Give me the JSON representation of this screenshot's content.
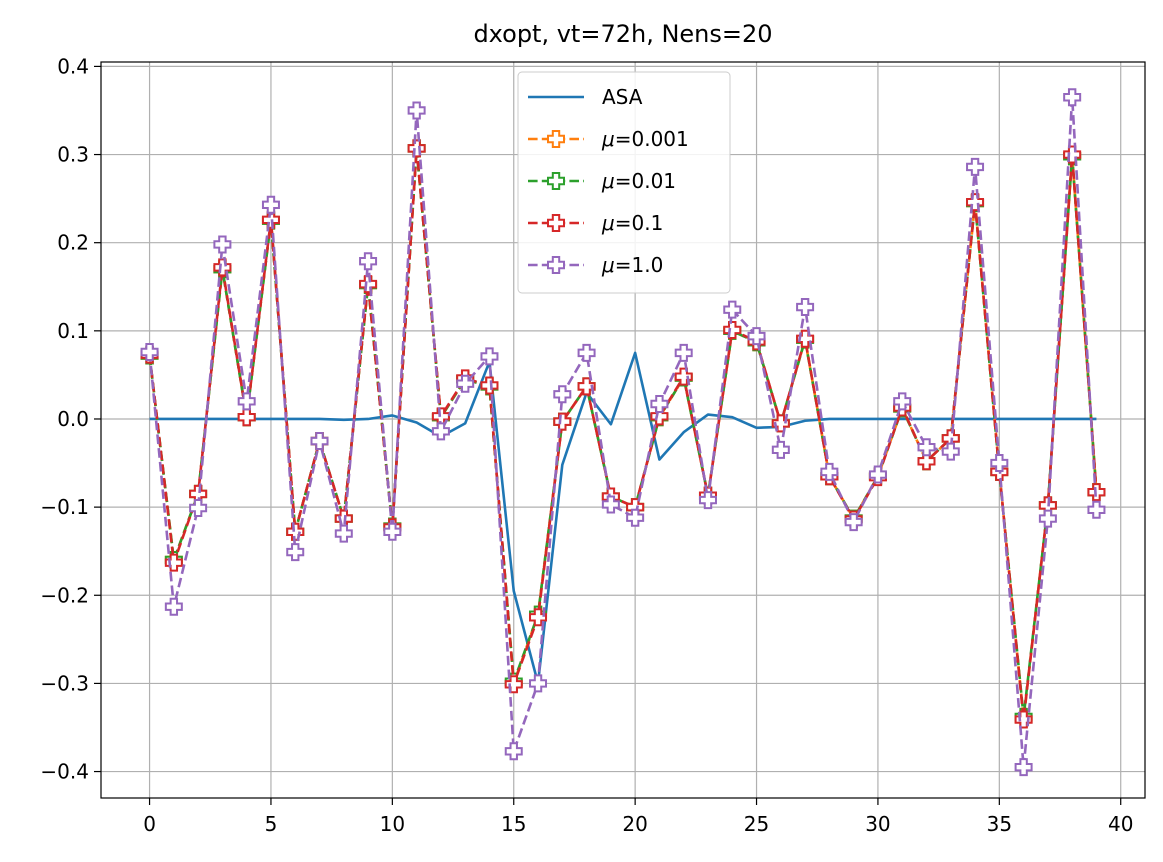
{
  "chart_data": {
    "type": "line",
    "title": "dxopt, vt=72h, Nens=20",
    "xlabel": "",
    "ylabel": "",
    "xlim": [
      -2,
      41
    ],
    "ylim": [
      -0.43,
      0.405
    ],
    "xticks": [
      0,
      5,
      10,
      15,
      20,
      25,
      30,
      35,
      40
    ],
    "yticks": [
      -0.4,
      -0.3,
      -0.2,
      -0.1,
      0.0,
      0.1,
      0.2,
      0.3,
      0.4
    ],
    "xtick_labels": [
      "0",
      "5",
      "10",
      "15",
      "20",
      "25",
      "30",
      "35",
      "40"
    ],
    "ytick_labels": [
      "−0.4",
      "−0.3",
      "−0.2",
      "−0.1",
      "0.0",
      "0.1",
      "0.2",
      "0.3",
      "0.4"
    ],
    "grid": true,
    "legend_position": "upper center",
    "x": [
      0,
      1,
      2,
      3,
      4,
      5,
      6,
      7,
      8,
      9,
      10,
      11,
      12,
      13,
      14,
      15,
      16,
      17,
      18,
      19,
      20,
      21,
      22,
      23,
      24,
      25,
      26,
      27,
      28,
      29,
      30,
      31,
      32,
      33,
      34,
      35,
      36,
      37,
      38,
      39
    ],
    "series": [
      {
        "name": "ASA",
        "label_prefix": "ASA",
        "label_value": "",
        "color": "#1f77b4",
        "style": "solid",
        "marker": "none",
        "values": [
          0,
          0,
          0,
          0,
          0,
          0,
          0,
          0,
          -0.001,
          0,
          0.004,
          -0.004,
          -0.02,
          -0.005,
          0.065,
          -0.195,
          -0.3,
          -0.052,
          0.03,
          -0.006,
          0.075,
          -0.046,
          -0.015,
          0.005,
          0.002,
          -0.01,
          -0.009,
          -0.002,
          0,
          0,
          0,
          0,
          0,
          0,
          0,
          0,
          0,
          0,
          0,
          0
        ]
      },
      {
        "name": "μ=0.001",
        "label_prefix": "μ",
        "label_value": "=0.001",
        "color": "#ff7f0e",
        "style": "dashed",
        "marker": "plus",
        "values": [
          0.072,
          -0.16,
          -0.085,
          0.17,
          0.002,
          0.225,
          -0.128,
          -0.025,
          -0.113,
          0.152,
          -0.122,
          0.307,
          0.002,
          0.045,
          0.037,
          -0.3,
          -0.222,
          -0.003,
          0.037,
          -0.088,
          -0.1,
          0.002,
          0.047,
          -0.087,
          0.1,
          0.087,
          -0.005,
          0.09,
          -0.065,
          -0.113,
          -0.065,
          0.012,
          -0.048,
          -0.022,
          0.245,
          -0.06,
          -0.34,
          -0.098,
          0.298,
          -0.083
        ]
      },
      {
        "name": "μ=0.01",
        "label_prefix": "μ",
        "label_value": "=0.01",
        "color": "#2ca02c",
        "style": "dashed",
        "marker": "plus",
        "values": [
          0.072,
          -0.16,
          -0.085,
          0.17,
          0.002,
          0.225,
          -0.128,
          -0.025,
          -0.113,
          0.152,
          -0.122,
          0.307,
          0.002,
          0.045,
          0.037,
          -0.298,
          -0.222,
          -0.003,
          0.037,
          -0.088,
          -0.1,
          0.002,
          0.047,
          -0.087,
          0.1,
          0.087,
          -0.005,
          0.09,
          -0.065,
          -0.113,
          -0.065,
          0.012,
          -0.048,
          -0.022,
          0.245,
          -0.06,
          -0.338,
          -0.098,
          0.298,
          -0.083
        ]
      },
      {
        "name": "μ=0.1",
        "label_prefix": "μ",
        "label_value": "=0.1",
        "color": "#d62728",
        "style": "dashed",
        "marker": "plus",
        "values": [
          0.073,
          -0.163,
          -0.085,
          0.172,
          0.002,
          0.226,
          -0.128,
          -0.025,
          -0.113,
          0.153,
          -0.123,
          0.307,
          0.003,
          0.046,
          0.038,
          -0.301,
          -0.225,
          -0.003,
          0.037,
          -0.088,
          -0.1,
          0.003,
          0.048,
          -0.087,
          0.101,
          0.088,
          -0.005,
          0.091,
          -0.065,
          -0.114,
          -0.066,
          0.013,
          -0.048,
          -0.022,
          0.246,
          -0.06,
          -0.341,
          -0.098,
          0.3,
          -0.083
        ]
      },
      {
        "name": "μ=1.0",
        "label_prefix": "μ",
        "label_value": "=1.0",
        "color": "#9467bd",
        "style": "dashed",
        "marker": "plus",
        "values": [
          0.076,
          -0.213,
          -0.101,
          0.198,
          0.02,
          0.243,
          -0.151,
          -0.025,
          -0.13,
          0.179,
          -0.128,
          0.35,
          -0.014,
          0.04,
          0.071,
          -0.377,
          -0.3,
          0.028,
          0.075,
          -0.097,
          -0.112,
          0.017,
          0.075,
          -0.092,
          0.124,
          0.094,
          -0.035,
          0.127,
          -0.06,
          -0.117,
          -0.063,
          0.02,
          -0.032,
          -0.037,
          0.286,
          -0.05,
          -0.395,
          -0.113,
          0.365,
          -0.103
        ]
      }
    ]
  }
}
